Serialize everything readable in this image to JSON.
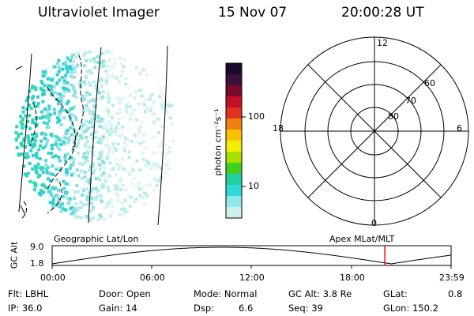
{
  "header": {
    "instrument": "Ultraviolet Imager",
    "date": "15 Nov 07",
    "time": "20:00:28 UT"
  },
  "colorbar": {
    "unit_label": "photon cm⁻²s⁻¹",
    "ticks": [
      "100",
      "10"
    ],
    "colors": [
      "#1a0a2a",
      "#3b1140",
      "#7a0a2a",
      "#c0102a",
      "#e03020",
      "#f08010",
      "#f8c000",
      "#f0f000",
      "#a8e000",
      "#40d020",
      "#20d0a0",
      "#30d8d8",
      "#90e8e8",
      "#d0f0f0"
    ]
  },
  "polar": {
    "clock_labels": [
      "12",
      "18",
      "6",
      "0"
    ],
    "lat_labels": [
      "60",
      "70",
      "80"
    ]
  },
  "projection_labels": {
    "left": "Geographic Lat/Lon",
    "right": "Apex MLat/MLT"
  },
  "altitude_plot": {
    "ylabel": "GC Alt",
    "ymax": "9.0",
    "ymin": "1.8",
    "xticks": [
      "00:00",
      "06:00",
      "12:00",
      "18:00",
      "23:59"
    ],
    "current_time_fraction": 0.834
  },
  "info": {
    "flt": "Flt: LBHL",
    "ip": "IP: 36.0",
    "door": "Door: Open",
    "gain": "Gain: 14",
    "mode": "Mode: Normal",
    "dsp": "Dsp:",
    "dsp_val": "6.6",
    "gcalt": "GC Alt: 3.8 Re",
    "seq": "Seq: 39",
    "glat": "GLat:",
    "glat_val": "0.8",
    "glon": "GLon: 150.2"
  }
}
